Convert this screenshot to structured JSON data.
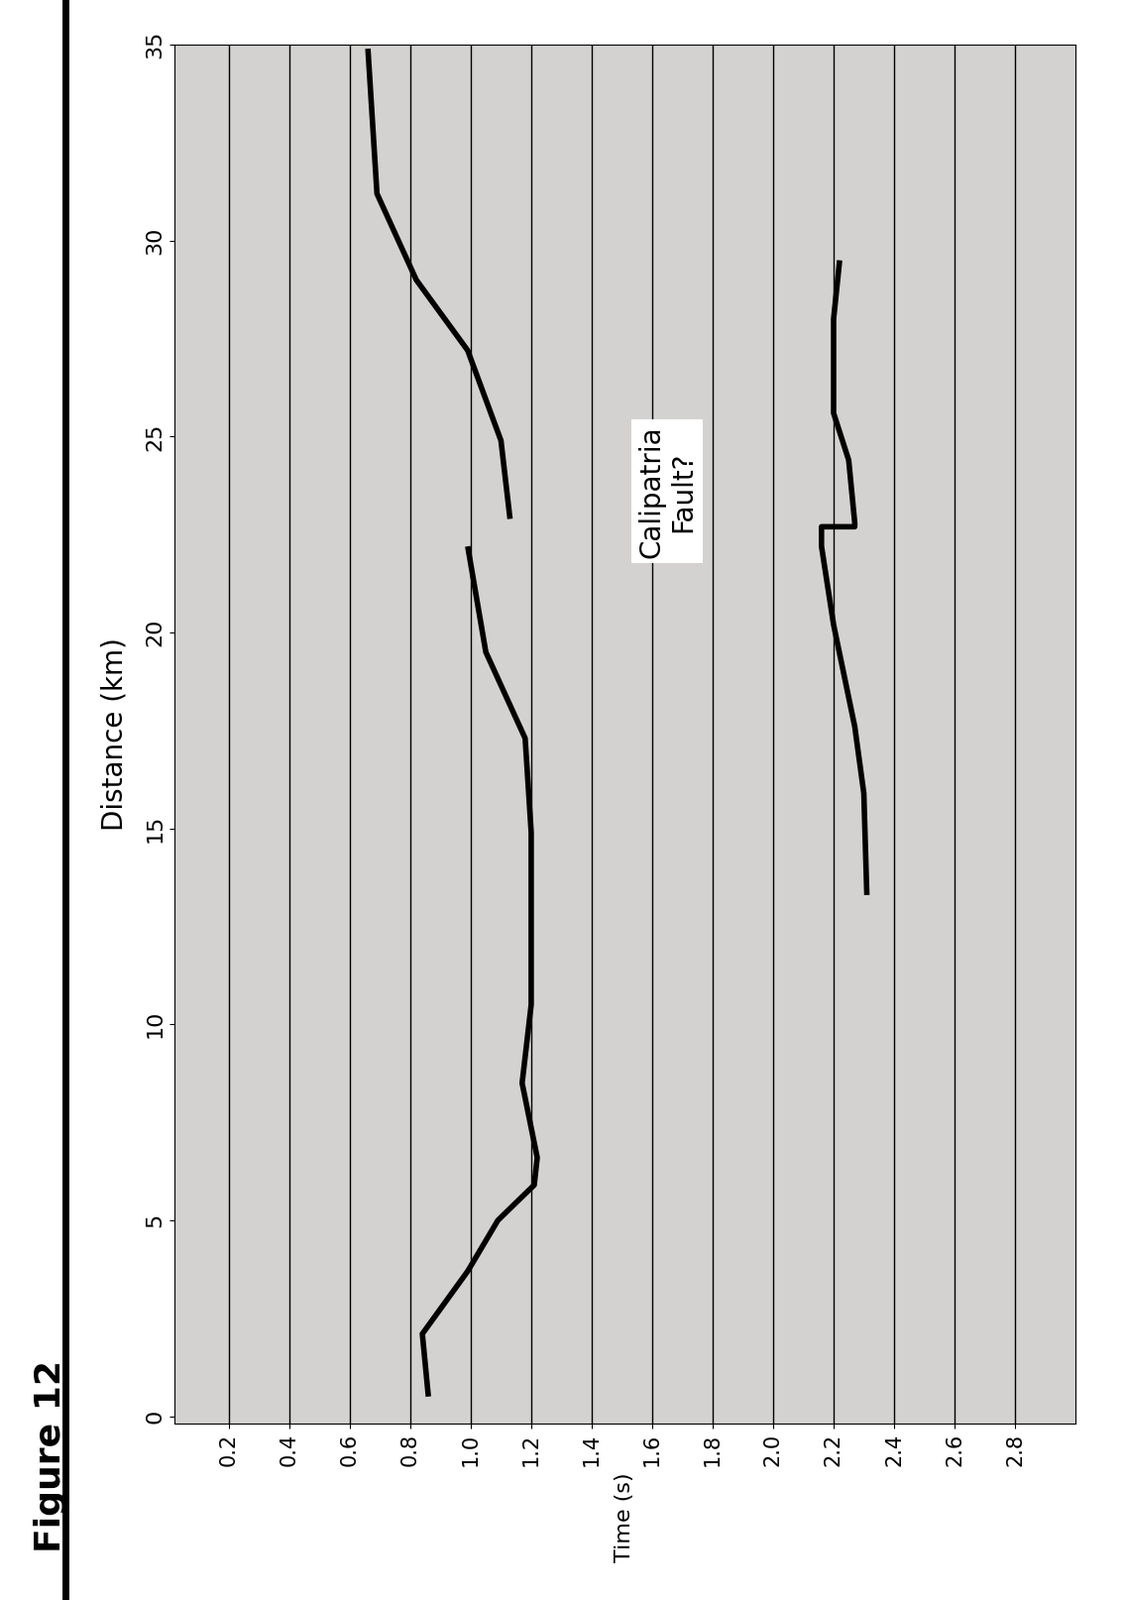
{
  "chart_data": {
    "type": "line",
    "figure_label": "Figure 12",
    "xlabel": "Time (s)",
    "ylabel": "Distance (km)",
    "annotation": {
      "text": "Calipatria\nFault?",
      "x": 1.65,
      "y": 23.6
    },
    "xlim": [
      0.02,
      3.0
    ],
    "ylim": [
      -0.2,
      35
    ],
    "xticks": [
      0.2,
      0.4,
      0.6,
      0.8,
      1.0,
      1.2,
      1.4,
      1.6,
      1.8,
      2.0,
      2.2,
      2.4,
      2.6,
      2.8
    ],
    "yticks": [
      0,
      5,
      10,
      15,
      20,
      25,
      30,
      35
    ],
    "grid": true,
    "series": [
      {
        "color": "#000000",
        "line_style": "solid",
        "x": [
          0.86,
          0.84,
          0.99,
          1.09,
          1.21,
          1.22,
          1.17,
          1.2,
          1.2,
          1.18,
          1.05,
          0.99,
          null,
          1.13,
          1.1,
          0.99,
          0.82,
          0.69,
          0.66
        ],
        "y": [
          0.5,
          2.1,
          3.7,
          5.0,
          5.9,
          6.6,
          8.5,
          10.5,
          14.9,
          17.3,
          19.5,
          22.2,
          null,
          22.9,
          24.9,
          27.2,
          29.0,
          31.2,
          34.9
        ]
      },
      {
        "color": "#000000",
        "line_style": "solid",
        "x": [
          2.31,
          2.3,
          2.27,
          2.2,
          2.16,
          2.16,
          2.27,
          2.27,
          2.25,
          2.2,
          2.2,
          2.22
        ],
        "y": [
          13.3,
          15.9,
          17.6,
          20.2,
          22.2,
          22.7,
          22.7,
          22.8,
          24.4,
          25.6,
          28.0,
          29.5
        ]
      }
    ]
  }
}
